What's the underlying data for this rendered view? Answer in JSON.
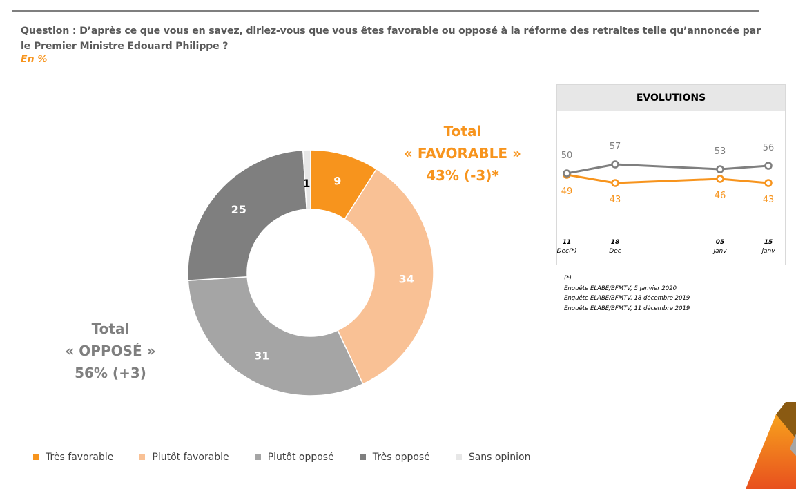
{
  "header": {
    "question": "Question : D’après ce que vous en savez, diriez-vous que vous êtes favorable ou opposé à la réforme des retraites telle qu’annoncée par le Premier Ministre Edouard Philippe ?",
    "unit": "En %"
  },
  "totals": {
    "favorable": {
      "line1": "Total",
      "line2": "« FAVORABLE »",
      "line3": "43% (-3)*",
      "color": "#f7941d"
    },
    "oppose": {
      "line1": "Total",
      "line2": "« OPPOSÉ »",
      "line3": "56% (+3)",
      "color": "#7f7f7f"
    }
  },
  "evolutions": {
    "title": "EVOLUTIONS",
    "dates": [
      {
        "day": "11",
        "month": "Dec(*)"
      },
      {
        "day": "18",
        "month": "Dec"
      },
      {
        "day": "05",
        "month": "janv"
      },
      {
        "day": "15",
        "month": "janv"
      }
    ],
    "notes": [
      "(*)",
      "Enquête ELABE/BFMTV, 5 janvier 2020",
      "Enquête ELABE/BFMTV, 18 décembre 2019",
      "Enquête ELABE/BFMTV, 11 décembre 2019"
    ]
  },
  "legend": [
    {
      "label": "Très favorable",
      "color": "#f7941d"
    },
    {
      "label": "Plutôt favorable",
      "color": "#f9c195"
    },
    {
      "label": "Plutôt opposé",
      "color": "#a5a5a5"
    },
    {
      "label": "Très opposé",
      "color": "#7f7f7f"
    },
    {
      "label": "Sans opinion",
      "color": "#e7e7e7"
    }
  ],
  "chart_data": [
    {
      "type": "pie",
      "title": "Favorable ou opposé à la réforme des retraites (En %)",
      "donut": true,
      "categories": [
        "Très favorable",
        "Plutôt favorable",
        "Plutôt opposé",
        "Très opposé",
        "Sans opinion"
      ],
      "values": [
        9,
        34,
        31,
        25,
        1
      ],
      "colors": [
        "#f7941d",
        "#f9c195",
        "#a5a5a5",
        "#7f7f7f",
        "#e7e7e7"
      ],
      "label_colors": [
        "#ffffff",
        "#ffffff",
        "#ffffff",
        "#ffffff",
        "#000000"
      ],
      "legend_position": "bottom"
    },
    {
      "type": "line",
      "title": "EVOLUTIONS",
      "categories": [
        "11 Dec(*)",
        "18 Dec",
        "05 janv",
        "15 janv"
      ],
      "series": [
        {
          "name": "Total OPPOSÉ",
          "values": [
            50,
            57,
            53,
            56
          ],
          "color": "#7f7f7f"
        },
        {
          "name": "Total FAVORABLE",
          "values": [
            49,
            43,
            46,
            43
          ],
          "color": "#f7941d"
        }
      ],
      "grid": false
    }
  ]
}
